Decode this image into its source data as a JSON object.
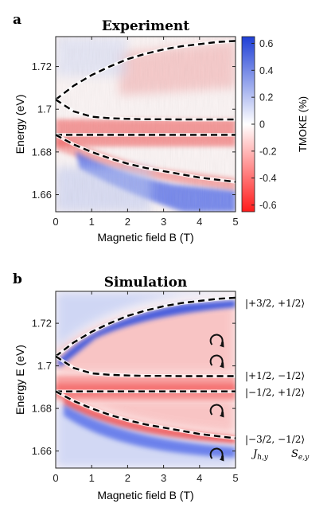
{
  "panels": [
    {
      "letter": "a",
      "title": "Experiment",
      "xlabel": "Magnetic field B (T)",
      "ylabel": "Energy (eV)"
    },
    {
      "letter": "b",
      "title": "Simulation",
      "xlabel": "Magnetic field B (T)",
      "ylabel": "Energy E (eV)"
    }
  ],
  "colorbar": {
    "label": "TMOKE (%)",
    "ticks": [
      "0.6",
      "0.4",
      "0.2",
      "0",
      "-0.2",
      "-0.4",
      "-0.6"
    ],
    "range": [
      -0.65,
      0.65
    ],
    "colors": {
      "positive": "#1f3fd6",
      "zero": "#ffffff",
      "negative": "#ff1a1a"
    }
  },
  "state_labels": [
    "|+3/2, +1/2⟩",
    "|+1/2, −1/2⟩",
    "|−1/2, +1/2⟩",
    "|−3/2, −1/2⟩"
  ],
  "spin_labels": {
    "hole": "J_{h,y}",
    "electron": "S_{e,y}"
  },
  "chart_data": [
    {
      "type": "heatmap",
      "title": "Experiment",
      "xlabel": "Magnetic field B (T)",
      "ylabel": "Energy (eV)",
      "xlim": [
        0,
        5
      ],
      "ylim": [
        1.652,
        1.734
      ],
      "xticks": [
        "0",
        "1",
        "2",
        "3",
        "4",
        "5"
      ],
      "yticks": [
        "1.66",
        "1.68",
        "1.7",
        "1.72"
      ],
      "zero_field_energies": [
        1.7045,
        1.688
      ],
      "branches": [
        {
          "x": [
            0,
            0.5,
            1,
            1.5,
            2,
            2.5,
            3,
            3.5,
            4,
            4.5,
            5
          ],
          "y": [
            1.7045,
            1.711,
            1.716,
            1.72,
            1.7235,
            1.726,
            1.728,
            1.7295,
            1.7305,
            1.7315,
            1.732
          ]
        },
        {
          "x": [
            0,
            0.5,
            1,
            1.5,
            2,
            2.5,
            3,
            3.5,
            4,
            4.5,
            5
          ],
          "y": [
            1.7045,
            1.699,
            1.6965,
            1.6958,
            1.6955,
            1.6953,
            1.6953,
            1.6952,
            1.6952,
            1.6952,
            1.6952
          ]
        },
        {
          "x": [
            0,
            0.5,
            1,
            1.5,
            2,
            2.5,
            3,
            3.5,
            4,
            4.5,
            5
          ],
          "y": [
            1.688,
            1.688,
            1.688,
            1.688,
            1.688,
            1.688,
            1.688,
            1.688,
            1.688,
            1.688,
            1.688
          ]
        },
        {
          "x": [
            0,
            0.5,
            1,
            1.5,
            2,
            2.5,
            3,
            3.5,
            4,
            4.5,
            5
          ],
          "y": [
            1.688,
            1.6835,
            1.68,
            1.677,
            1.6745,
            1.6725,
            1.671,
            1.6695,
            1.668,
            1.667,
            1.666
          ]
        }
      ]
    },
    {
      "type": "heatmap",
      "title": "Simulation",
      "xlabel": "Magnetic field B (T)",
      "ylabel": "Energy E (eV)",
      "xlim": [
        0,
        5
      ],
      "ylim": [
        1.652,
        1.735
      ],
      "xticks": [
        "0",
        "1",
        "2",
        "3",
        "4",
        "5"
      ],
      "yticks": [
        "1.66",
        "1.68",
        "1.7",
        "1.72"
      ],
      "zero_field_energies": [
        1.7045,
        1.688
      ],
      "branches": [
        {
          "x": [
            0,
            0.5,
            1,
            1.5,
            2,
            2.5,
            3,
            3.5,
            4,
            4.5,
            5
          ],
          "y": [
            1.7045,
            1.711,
            1.716,
            1.72,
            1.7235,
            1.726,
            1.728,
            1.7295,
            1.7305,
            1.7315,
            1.732
          ]
        },
        {
          "x": [
            0,
            0.5,
            1,
            1.5,
            2,
            2.5,
            3,
            3.5,
            4,
            4.5,
            5
          ],
          "y": [
            1.7045,
            1.699,
            1.6965,
            1.6958,
            1.6955,
            1.6953,
            1.6953,
            1.6952,
            1.6952,
            1.6952,
            1.6952
          ]
        },
        {
          "x": [
            0,
            0.5,
            1,
            1.5,
            2,
            2.5,
            3,
            3.5,
            4,
            4.5,
            5
          ],
          "y": [
            1.688,
            1.688,
            1.688,
            1.688,
            1.688,
            1.688,
            1.688,
            1.688,
            1.688,
            1.688,
            1.688
          ]
        },
        {
          "x": [
            0,
            0.5,
            1,
            1.5,
            2,
            2.5,
            3,
            3.5,
            4,
            4.5,
            5
          ],
          "y": [
            1.688,
            1.6835,
            1.68,
            1.677,
            1.6745,
            1.6725,
            1.671,
            1.6695,
            1.668,
            1.667,
            1.666
          ]
        }
      ]
    }
  ]
}
